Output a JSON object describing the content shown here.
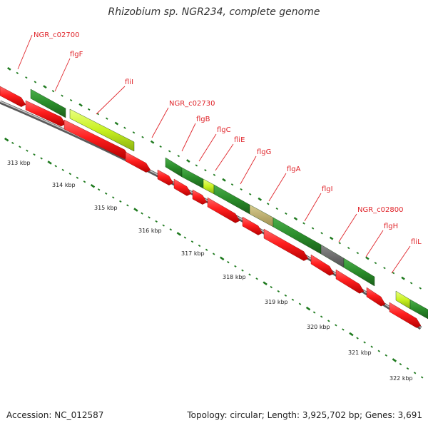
{
  "title": "Rhizobium sp. NGR234, complete genome",
  "footer": {
    "accession": "Accession: NC_012587",
    "summary": "Topology: circular; Length: 3,925,702 bp; Genes: 3,691"
  },
  "colors": {
    "gene_red": "#ff1f1f",
    "feature_green": "#2a8c2a",
    "feature_lightgreen": "#c8f020",
    "feature_tan": "#b8a860",
    "feature_gray": "#6a6a6a",
    "backbone": "#8a8a8a",
    "label_red": "#e0242a",
    "dot_green": "#1e7a1e"
  },
  "gene_labels": [
    {
      "text": "NGR_c02700"
    },
    {
      "text": "flgF"
    },
    {
      "text": "fliI"
    },
    {
      "text": "NGR_c02730"
    },
    {
      "text": "flgB"
    },
    {
      "text": "flgC"
    },
    {
      "text": "fliE"
    },
    {
      "text": "flgG"
    },
    {
      "text": "flgA"
    },
    {
      "text": "flgI"
    },
    {
      "text": "NGR_c02800"
    },
    {
      "text": "flgH"
    },
    {
      "text": "fliL"
    }
  ],
  "kbp_ticks": [
    "313 kbp",
    "314 kbp",
    "315 kbp",
    "316 kbp",
    "317 kbp",
    "318 kbp",
    "319 kbp",
    "320 kbp",
    "321 kbp",
    "322 kbp"
  ]
}
